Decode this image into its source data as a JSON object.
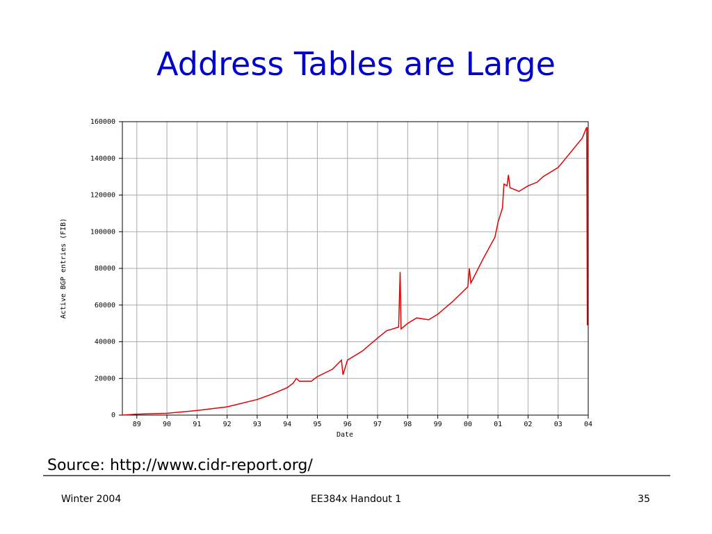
{
  "slide": {
    "title": "Address Tables are Large",
    "source": "Source: http://www.cidr-report.org/",
    "footer": {
      "left": "Winter 2004",
      "center": "EE384x Handout 1",
      "right": "35"
    }
  },
  "chart_data": {
    "type": "line",
    "x_label": "Date",
    "y_label": "Active BGP entries (FIB)",
    "x": [
      1988.52,
      1989,
      1990,
      1991,
      1992,
      1993,
      1993.5,
      1994,
      1994.2,
      1994.3,
      1994.4,
      1994.8,
      1995,
      1995.5,
      1995.8,
      1995.85,
      1996,
      1996.5,
      1997,
      1997.3,
      1997.5,
      1997.7,
      1997.75,
      1997.78,
      1998,
      1998.3,
      1998.7,
      1999,
      1999.5,
      2000,
      2000.05,
      2000.1,
      2000.5,
      2000.9,
      2001,
      2001.15,
      2001.2,
      2001.3,
      2001.35,
      2001.4,
      2001.7,
      2002,
      2002.3,
      2002.5,
      2003,
      2003.5,
      2003.8,
      2003.9,
      2003.95,
      2003.97,
      2003.99
    ],
    "series": [
      {
        "color": "#e00000",
        "values": [
          0,
          500,
          1000,
          2500,
          4500,
          8500,
          11500,
          15000,
          17500,
          20000,
          18500,
          18500,
          21000,
          25000,
          30000,
          22000,
          30000,
          35000,
          42000,
          46000,
          47000,
          48000,
          78000,
          47000,
          50000,
          53000,
          52000,
          55000,
          62000,
          70000,
          80000,
          72000,
          85000,
          97000,
          105000,
          113000,
          126000,
          125000,
          131000,
          124000,
          122000,
          125000,
          127000,
          130000,
          135000,
          145000,
          151000,
          155000,
          157000,
          49000,
          157000
        ]
      }
    ],
    "xlim": [
      1988.52,
      2004
    ],
    "xticks": [
      {
        "value": 1989,
        "label": "89"
      },
      {
        "value": 1990,
        "label": "90"
      },
      {
        "value": 1991,
        "label": "91"
      },
      {
        "value": 1992,
        "label": "92"
      },
      {
        "value": 1993,
        "label": "93"
      },
      {
        "value": 1994,
        "label": "94"
      },
      {
        "value": 1995,
        "label": "95"
      },
      {
        "value": 1996,
        "label": "96"
      },
      {
        "value": 1997,
        "label": "97"
      },
      {
        "value": 1998,
        "label": "98"
      },
      {
        "value": 1999,
        "label": "99"
      },
      {
        "value": 2000,
        "label": "00"
      },
      {
        "value": 2001,
        "label": "01"
      },
      {
        "value": 2002,
        "label": "02"
      },
      {
        "value": 2003,
        "label": "03"
      },
      {
        "value": 2004,
        "label": "04"
      }
    ],
    "ylim": [
      0,
      160000
    ],
    "yticks": [
      0,
      20000,
      40000,
      60000,
      80000,
      100000,
      120000,
      140000,
      160000
    ],
    "grid": true
  }
}
